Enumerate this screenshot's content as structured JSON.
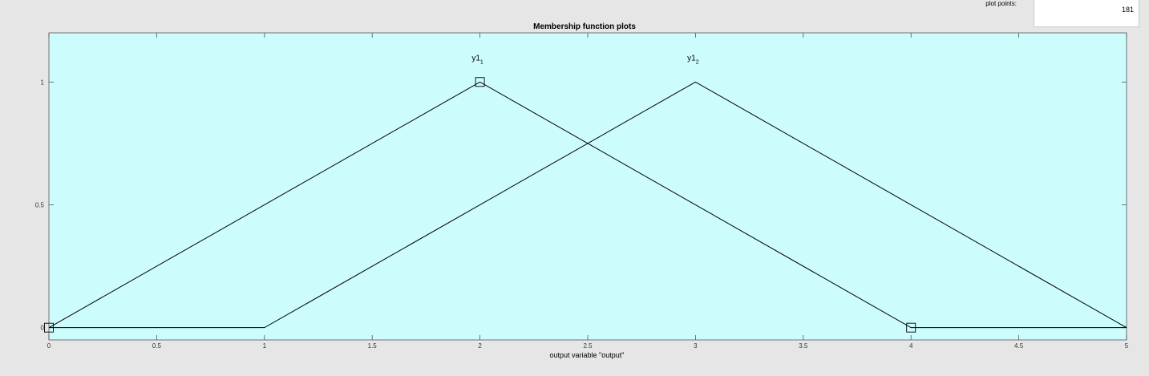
{
  "controls": {
    "plot_points_label": "plot points:",
    "plot_points_value": "181"
  },
  "colors": {
    "plot_background": "#ccfcfc",
    "line": "#000000",
    "window": "#e6e6e6"
  },
  "chart_data": {
    "type": "line",
    "title": "Membership function plots",
    "xlabel": "output variable \"output\"",
    "ylabel": "",
    "xlim": [
      0,
      5
    ],
    "ylim": [
      -0.05,
      1.2
    ],
    "x_ticks": [
      0,
      0.5,
      1,
      1.5,
      2,
      2.5,
      3,
      3.5,
      4,
      4.5,
      5
    ],
    "x_tick_labels": [
      "0",
      "0.5",
      "1",
      "1.5",
      "2",
      "2.5",
      "3",
      "3.5",
      "4",
      "4.5",
      "5"
    ],
    "y_ticks": [
      0,
      0.5,
      1
    ],
    "y_tick_labels": [
      "0",
      "0.5",
      "1"
    ],
    "grid": false,
    "series": [
      {
        "label_base": "y1",
        "label_sub": "1",
        "x": [
          0,
          2,
          4,
          5
        ],
        "y": [
          0,
          1,
          0,
          0
        ],
        "markers_at": [
          0,
          2,
          4
        ]
      },
      {
        "label_base": "y1",
        "label_sub": "2",
        "x": [
          0,
          1,
          3,
          5
        ],
        "y": [
          0,
          0,
          1,
          0
        ],
        "markers_at": []
      }
    ]
  }
}
